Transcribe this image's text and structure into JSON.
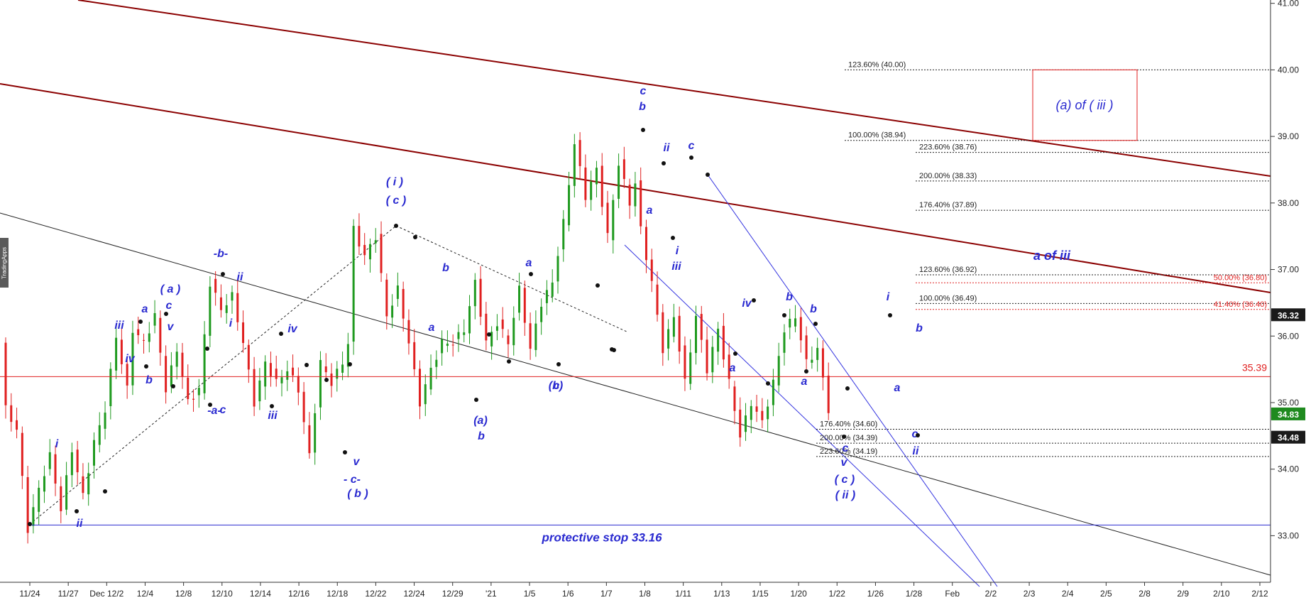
{
  "chart_data": {
    "type": "candlestick",
    "watermark": "TradingApps",
    "ylim": [
      32.3,
      41.0
    ],
    "x_tick_labels": [
      "11/24",
      "11/27",
      "Dec 12/2",
      "12/4",
      "12/8",
      "12/10",
      "12/14",
      "12/16",
      "12/18",
      "12/22",
      "12/24",
      "12/29",
      "'21",
      "1/5",
      "1/6",
      "1/7",
      "1/8",
      "1/11",
      "1/13",
      "1/15",
      "1/20",
      "1/22",
      "1/26",
      "1/28",
      "Feb",
      "2/2",
      "2/3",
      "2/4",
      "2/5",
      "2/8",
      "2/9",
      "2/10",
      "2/12"
    ],
    "y_tick_labels": [
      "33.00",
      "34.00",
      "35.00",
      "36.00",
      "37.00",
      "38.00",
      "39.00",
      "40.00",
      "41.00"
    ],
    "price_badges": [
      {
        "label": "36.32",
        "value": 36.32,
        "bg": "#1a1a1a"
      },
      {
        "label": "34.83",
        "value": 34.83,
        "bg": "#1f8a1f"
      },
      {
        "label": "34.48",
        "value": 34.48,
        "bg": "#1a1a1a"
      }
    ],
    "horizontal_levels": [
      {
        "value": 35.39,
        "label": "35.39",
        "color": "#e02020"
      },
      {
        "value": 33.16,
        "label": "protective stop 33.16",
        "color": "#2a2ad0"
      }
    ],
    "fib_levels": [
      {
        "label": "123.60% (40.00)",
        "value": 40.0,
        "color": "#222222"
      },
      {
        "label": "100.00% (38.94)",
        "value": 38.94,
        "color": "#222222"
      },
      {
        "label": "223.60% (38.76)",
        "value": 38.76,
        "color": "#222222"
      },
      {
        "label": "200.00% (38.33)",
        "value": 38.33,
        "color": "#222222"
      },
      {
        "label": "176.40% (37.89)",
        "value": 37.89,
        "color": "#222222"
      },
      {
        "label": "123.60% (36.92)",
        "value": 36.92,
        "color": "#222222"
      },
      {
        "label": "50.00% (36.80)",
        "value": 36.8,
        "color": "#e02020"
      },
      {
        "label": "100.00% (36.49)",
        "value": 36.49,
        "color": "#222222"
      },
      {
        "label": "41.40% (36.40)",
        "value": 36.4,
        "color": "#e02020"
      },
      {
        "label": "176.40% (34.60)",
        "value": 34.6,
        "color": "#222222"
      },
      {
        "label": "200.00% (34.39)",
        "value": 34.39,
        "color": "#222222"
      },
      {
        "label": "223.60% (34.19)",
        "value": 34.19,
        "color": "#222222"
      }
    ],
    "target_box_label": "(a) of ( iii )",
    "target_box_range": [
      38.94,
      40.0
    ],
    "channel_label": "a of iii",
    "wave_labels": [
      "i",
      "ii",
      "iii",
      "iv",
      "a",
      "b",
      "c",
      "( a )",
      "v",
      "c",
      "-b-",
      "ii",
      "i",
      "-a-",
      "iv",
      "iii",
      "v",
      "- c-",
      "( b )",
      "( i )",
      "( c )",
      "a",
      "b",
      "a",
      "c",
      "(a)",
      "b",
      "(b)",
      "c",
      "b",
      "ii",
      "a",
      "c",
      "i",
      "iii",
      "a",
      "iv",
      "b",
      "a",
      "b",
      "c",
      "v",
      "( c )",
      "( ii )",
      "i",
      "a",
      "b",
      "c",
      "ii"
    ],
    "series": [
      {
        "name": "",
        "points": [
          [
            0,
            35.9
          ],
          [
            1,
            34.9
          ],
          [
            3,
            34.6
          ],
          [
            5,
            33.1
          ],
          [
            7,
            33.7
          ],
          [
            9,
            34.2
          ],
          [
            11,
            33.4
          ],
          [
            13,
            34.3
          ],
          [
            15,
            33.6
          ],
          [
            17,
            34.4
          ],
          [
            19,
            34.9
          ],
          [
            21,
            36.0
          ],
          [
            23,
            35.2
          ],
          [
            24,
            36.1
          ],
          [
            26,
            35.9
          ],
          [
            28,
            36.3
          ],
          [
            30,
            35.2
          ],
          [
            32,
            35.8
          ],
          [
            34,
            35.0
          ],
          [
            36,
            35.2
          ],
          [
            38,
            36.8
          ],
          [
            40,
            36.4
          ],
          [
            42,
            36.6
          ],
          [
            44,
            35.9
          ],
          [
            46,
            35.0
          ],
          [
            48,
            35.6
          ],
          [
            50,
            35.3
          ],
          [
            52,
            35.5
          ],
          [
            54,
            35.2
          ],
          [
            56,
            34.2
          ],
          [
            58,
            35.6
          ],
          [
            60,
            35.3
          ],
          [
            62,
            35.6
          ],
          [
            63,
            35.9
          ],
          [
            64,
            37.6
          ],
          [
            66,
            37.2
          ],
          [
            68,
            37.5
          ],
          [
            70,
            36.3
          ],
          [
            72,
            36.7
          ],
          [
            74,
            35.9
          ],
          [
            76,
            35.0
          ],
          [
            78,
            35.5
          ],
          [
            80,
            35.9
          ],
          [
            82,
            35.9
          ],
          [
            84,
            36.1
          ],
          [
            86,
            36.8
          ],
          [
            88,
            35.9
          ],
          [
            90,
            36.2
          ],
          [
            92,
            35.9
          ],
          [
            94,
            36.7
          ],
          [
            96,
            35.8
          ],
          [
            98,
            36.5
          ],
          [
            100,
            36.8
          ],
          [
            102,
            37.7
          ],
          [
            104,
            38.9
          ],
          [
            106,
            38.1
          ],
          [
            108,
            38.5
          ],
          [
            110,
            37.5
          ],
          [
            112,
            38.6
          ],
          [
            114,
            38.0
          ],
          [
            115,
            38.3
          ],
          [
            116,
            37.6
          ],
          [
            118,
            36.8
          ],
          [
            120,
            35.8
          ],
          [
            122,
            36.3
          ],
          [
            124,
            35.3
          ],
          [
            126,
            36.3
          ],
          [
            128,
            35.5
          ],
          [
            130,
            36.1
          ],
          [
            132,
            35.3
          ],
          [
            134,
            34.5
          ],
          [
            136,
            35.0
          ],
          [
            138,
            34.7
          ],
          [
            140,
            35.3
          ],
          [
            142,
            36.1
          ],
          [
            144,
            36.3
          ],
          [
            146,
            35.6
          ],
          [
            148,
            35.8
          ],
          [
            150,
            34.9
          ]
        ]
      }
    ]
  }
}
